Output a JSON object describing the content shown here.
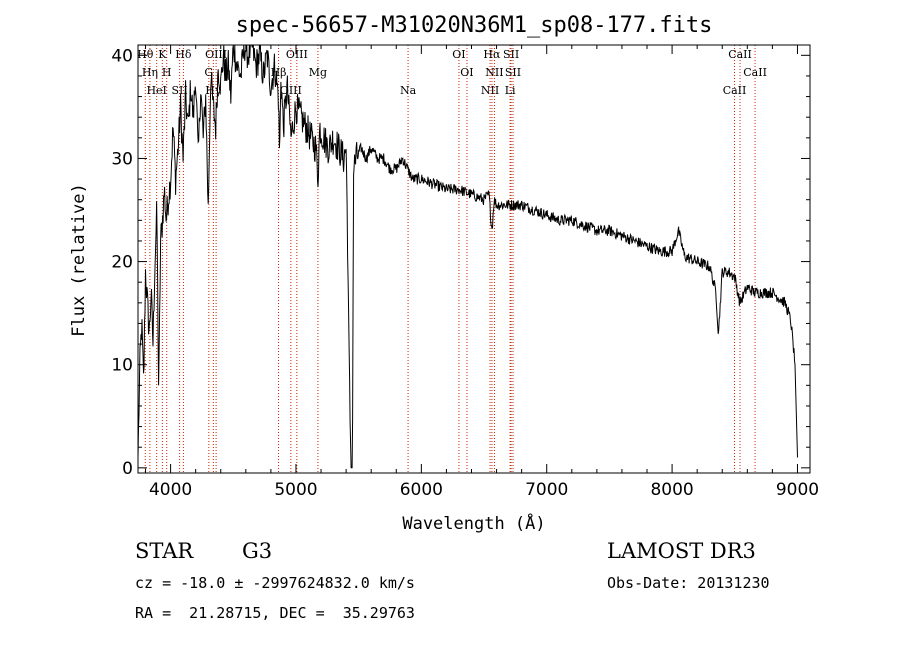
{
  "chart_data": {
    "type": "line",
    "title": "spec-56657-M31020N36M1_sp08-177.fits",
    "xlabel": "Wavelength (Å)",
    "ylabel": "Flux (relative)",
    "xlim": [
      3740,
      9100
    ],
    "ylim": [
      -0.5,
      41
    ],
    "x_ticks": [
      4000,
      5000,
      6000,
      7000,
      8000,
      9000
    ],
    "y_ticks": [
      0,
      10,
      20,
      30,
      40
    ],
    "series": [
      {
        "name": "spectrum",
        "x": [
          3740,
          3755,
          3770,
          3785,
          3800,
          3815,
          3830,
          3845,
          3860,
          3875,
          3890,
          3905,
          3920,
          3935,
          3950,
          3965,
          3980,
          4000,
          4020,
          4040,
          4060,
          4080,
          4100,
          4120,
          4140,
          4160,
          4180,
          4200,
          4220,
          4240,
          4260,
          4280,
          4300,
          4320,
          4340,
          4360,
          4380,
          4400,
          4420,
          4440,
          4460,
          4480,
          4500,
          4530,
          4560,
          4590,
          4620,
          4650,
          4680,
          4710,
          4740,
          4770,
          4800,
          4830,
          4860,
          4870,
          4880,
          4900,
          4930,
          4960,
          5000,
          5040,
          5080,
          5120,
          5160,
          5175,
          5190,
          5220,
          5260,
          5300,
          5340,
          5380,
          5400,
          5410,
          5420,
          5430,
          5440,
          5450,
          5460,
          5480,
          5520,
          5560,
          5600,
          5650,
          5700,
          5750,
          5800,
          5850,
          5890,
          5930,
          6000,
          6100,
          6200,
          6300,
          6400,
          6500,
          6540,
          6563,
          6580,
          6600,
          6700,
          6800,
          6900,
          7000,
          7100,
          7200,
          7300,
          7400,
          7500,
          7600,
          7700,
          7800,
          7900,
          8000,
          8050,
          8100,
          8200,
          8300,
          8350,
          8370,
          8400,
          8450,
          8500,
          8540,
          8600,
          8660,
          8700,
          8750,
          8800,
          8850,
          8900,
          8930,
          8950,
          8980,
          9000
        ],
        "values": [
          1,
          10,
          14,
          8,
          19,
          16,
          13,
          17,
          12,
          20,
          25,
          7,
          22,
          24,
          27,
          24,
          26,
          28,
          33,
          28,
          31,
          35,
          30,
          36,
          33,
          37,
          34,
          38,
          30,
          37,
          32,
          36,
          25,
          38,
          35,
          33,
          39,
          37,
          40,
          38,
          39,
          36,
          41,
          39,
          38,
          41,
          40,
          41,
          39,
          40,
          38,
          40,
          37,
          39,
          36,
          30,
          38,
          33,
          37,
          32,
          35,
          34,
          33,
          32,
          31,
          28,
          33,
          32,
          31,
          32,
          31,
          30,
          31,
          24,
          14,
          6,
          0,
          0,
          29,
          30,
          31,
          30,
          31,
          30,
          30,
          29,
          29,
          30,
          29,
          28,
          28,
          27.5,
          27,
          27,
          26.5,
          26,
          26.5,
          23,
          26,
          25.5,
          25.5,
          25.5,
          25,
          24.5,
          24,
          24,
          23.5,
          23,
          23,
          22.5,
          22,
          21.5,
          21,
          21,
          23,
          20.5,
          20,
          19.5,
          17,
          13,
          19,
          19,
          18.5,
          16,
          17.5,
          17,
          17,
          17,
          17,
          16.5,
          16,
          15,
          14,
          10,
          1
        ]
      }
    ],
    "emission_lines": [
      {
        "label": "Hθ",
        "wavelength": 3798
      },
      {
        "label": "Hη",
        "wavelength": 3835
      },
      {
        "label": "HeI",
        "wavelength": 3889
      },
      {
        "label": "K",
        "wavelength": 3934
      },
      {
        "label": "H",
        "wavelength": 3969
      },
      {
        "label": "SII",
        "wavelength": 4072
      },
      {
        "label": "Hδ",
        "wavelength": 4102
      },
      {
        "label": "G",
        "wavelength": 4305
      },
      {
        "label": "Hγ",
        "wavelength": 4341
      },
      {
        "label": "OIII",
        "wavelength": 4363
      },
      {
        "label": "Hβ",
        "wavelength": 4861
      },
      {
        "label": "OIII",
        "wavelength": 4959
      },
      {
        "label": "OIII",
        "wavelength": 5007
      },
      {
        "label": "Mg",
        "wavelength": 5175
      },
      {
        "label": "Na",
        "wavelength": 5894
      },
      {
        "label": "OI",
        "wavelength": 6300
      },
      {
        "label": "OI",
        "wavelength": 6364
      },
      {
        "label": "NII",
        "wavelength": 6548
      },
      {
        "label": "Hα",
        "wavelength": 6563
      },
      {
        "label": "NII",
        "wavelength": 6583
      },
      {
        "label": "Li",
        "wavelength": 6708
      },
      {
        "label": "SII",
        "wavelength": 6716
      },
      {
        "label": "SII",
        "wavelength": 6731
      },
      {
        "label": "CaII",
        "wavelength": 8498
      },
      {
        "label": "CaII",
        "wavelength": 8542
      },
      {
        "label": "CaII",
        "wavelength": 8662
      }
    ]
  },
  "info": {
    "object_class": "STAR",
    "subclass": "G3",
    "survey": "LAMOST DR3",
    "redshift_line": "cz = -18.0 ± -2997624832.0 km/s",
    "obs_date": "Obs-Date: 20131230",
    "coords": "RA =  21.28715, DEC =  35.29763"
  },
  "colors": {
    "spectrum": "#000000",
    "line_markers": "#cc2200"
  }
}
